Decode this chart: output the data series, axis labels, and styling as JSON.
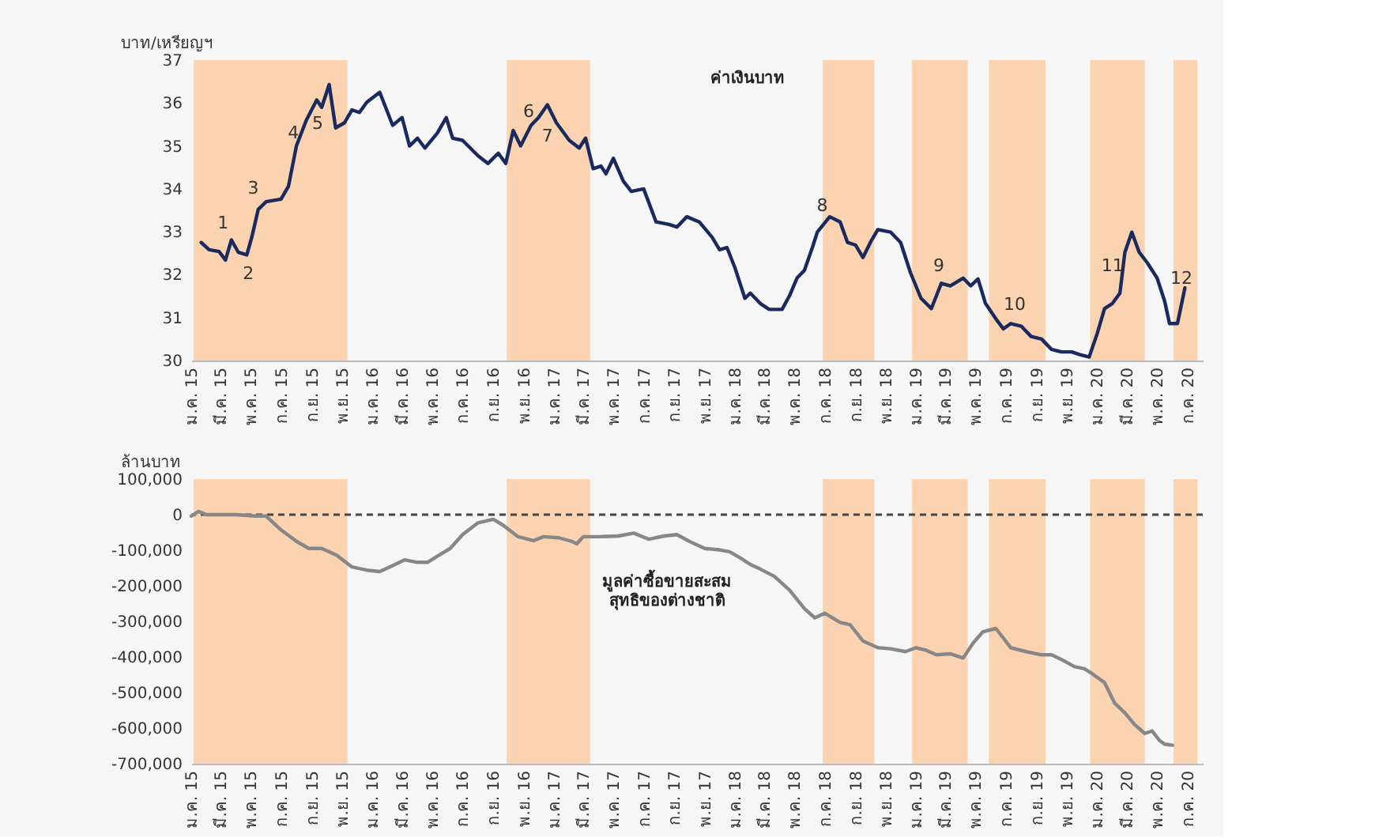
{
  "chart_data": [
    {
      "type": "line",
      "ylabel": "บาท/เหรียญฯ",
      "xlim": [
        "2015-01",
        "2020-08"
      ],
      "ylim": [
        30,
        37
      ],
      "yticks": [
        30,
        31,
        32,
        33,
        34,
        35,
        36,
        37
      ],
      "xticks": [
        {
          "value": "2015-01",
          "label": "ม.ค. 15"
        },
        {
          "value": "2015-03",
          "label": "มี.ค. 15"
        },
        {
          "value": "2015-05",
          "label": "พ.ค. 15"
        },
        {
          "value": "2015-07",
          "label": "ก.ค. 15"
        },
        {
          "value": "2015-09",
          "label": "ก.ย. 15"
        },
        {
          "value": "2015-11",
          "label": "พ.ย. 15"
        },
        {
          "value": "2016-01",
          "label": "ม.ค. 16"
        },
        {
          "value": "2016-03",
          "label": "มี.ค. 16"
        },
        {
          "value": "2016-05",
          "label": "พ.ค. 16"
        },
        {
          "value": "2016-07",
          "label": "ก.ค. 16"
        },
        {
          "value": "2016-09",
          "label": "ก.ย. 16"
        },
        {
          "value": "2016-11",
          "label": "พ.ย. 16"
        },
        {
          "value": "2017-01",
          "label": "ม.ค. 17"
        },
        {
          "value": "2017-03",
          "label": "มี.ค. 17"
        },
        {
          "value": "2017-05",
          "label": "พ.ค. 17"
        },
        {
          "value": "2017-07",
          "label": "ก.ค. 17"
        },
        {
          "value": "2017-09",
          "label": "ก.ย. 17"
        },
        {
          "value": "2017-11",
          "label": "พ.ย. 17"
        },
        {
          "value": "2018-01",
          "label": "ม.ค. 18"
        },
        {
          "value": "2018-03",
          "label": "มี.ค. 18"
        },
        {
          "value": "2018-05",
          "label": "พ.ค. 18"
        },
        {
          "value": "2018-07",
          "label": "ก.ค. 18"
        },
        {
          "value": "2018-09",
          "label": "ก.ย. 18"
        },
        {
          "value": "2018-11",
          "label": "พ.ย. 18"
        },
        {
          "value": "2019-01",
          "label": "ม.ค. 19"
        },
        {
          "value": "2019-03",
          "label": "มี.ค. 19"
        },
        {
          "value": "2019-05",
          "label": "พ.ค. 19"
        },
        {
          "value": "2019-07",
          "label": "ก.ค. 19"
        },
        {
          "value": "2019-09",
          "label": "ก.ย. 19"
        },
        {
          "value": "2019-11",
          "label": "พ.ย. 19"
        },
        {
          "value": "2020-01",
          "label": "ม.ค. 20"
        },
        {
          "value": "2020-03",
          "label": "มี.ค. 20"
        },
        {
          "value": "2020-05",
          "label": "พ.ค. 20"
        },
        {
          "value": "2020-07",
          "label": "ก.ค. 20"
        }
      ],
      "series": [
        {
          "name": "ค่าเงินบาท",
          "color": "#1b2a5e",
          "x": [
            "2015-01-21",
            "2015-02-06",
            "2015-02-26",
            "2015-03-11",
            "2015-03-23",
            "2015-04-06",
            "2015-04-23",
            "2015-05-03",
            "2015-05-16",
            "2015-06-01",
            "2015-07-01",
            "2015-07-16",
            "2015-08-01",
            "2015-08-21",
            "2015-09-11",
            "2015-09-21",
            "2015-10-06",
            "2015-10-19",
            "2015-11-06",
            "2015-11-21",
            "2015-12-06",
            "2015-12-21",
            "2016-01-16",
            "2016-02-11",
            "2016-03-01",
            "2016-03-16",
            "2016-04-01",
            "2016-04-16",
            "2016-05-11",
            "2016-05-29",
            "2016-06-11",
            "2016-07-01",
            "2016-08-01",
            "2016-08-21",
            "2016-09-11",
            "2016-09-26",
            "2016-10-11",
            "2016-10-26",
            "2016-11-16",
            "2016-12-01",
            "2016-12-19",
            "2017-01-06",
            "2017-02-01",
            "2017-02-21",
            "2017-03-06",
            "2017-03-21",
            "2017-04-06",
            "2017-04-16",
            "2017-05-01",
            "2017-05-21",
            "2017-06-06",
            "2017-07-01",
            "2017-07-26",
            "2017-08-21",
            "2017-09-06",
            "2017-09-26",
            "2017-10-21",
            "2017-11-16",
            "2017-12-01",
            "2017-12-16",
            "2018-01-01",
            "2018-01-21",
            "2018-02-01",
            "2018-02-21",
            "2018-03-11",
            "2018-04-06",
            "2018-04-21",
            "2018-05-06",
            "2018-05-21",
            "2018-06-06",
            "2018-06-16",
            "2018-07-11",
            "2018-08-01",
            "2018-08-16",
            "2018-09-01",
            "2018-09-16",
            "2018-10-01",
            "2018-10-16",
            "2018-11-11",
            "2018-12-01",
            "2018-12-21",
            "2019-01-11",
            "2019-02-01",
            "2019-02-21",
            "2019-03-11",
            "2019-04-06",
            "2019-04-21",
            "2019-05-06",
            "2019-05-21",
            "2019-06-11",
            "2019-06-26",
            "2019-07-11",
            "2019-08-01",
            "2019-08-21",
            "2019-09-11",
            "2019-10-01",
            "2019-10-21",
            "2019-11-11",
            "2019-11-26",
            "2019-12-16",
            "2020-01-01",
            "2020-01-16",
            "2020-02-01",
            "2020-02-16",
            "2020-02-26",
            "2020-03-11",
            "2020-03-26",
            "2020-04-11",
            "2020-05-01",
            "2020-05-16",
            "2020-05-26",
            "2020-06-11",
            "2020-06-26"
          ],
          "values": [
            32.75,
            32.58,
            32.54,
            32.34,
            32.81,
            32.52,
            32.46,
            32.87,
            33.52,
            33.7,
            33.76,
            34.06,
            35.0,
            35.6,
            36.07,
            35.9,
            36.43,
            35.42,
            35.54,
            35.84,
            35.78,
            36.02,
            36.25,
            35.48,
            35.66,
            35.0,
            35.18,
            34.95,
            35.3,
            35.66,
            35.18,
            35.13,
            34.77,
            34.59,
            34.83,
            34.59,
            35.36,
            35.0,
            35.48,
            35.66,
            35.96,
            35.54,
            35.13,
            34.95,
            35.18,
            34.47,
            34.53,
            34.35,
            34.71,
            34.18,
            33.94,
            34.0,
            33.23,
            33.17,
            33.11,
            33.35,
            33.23,
            32.87,
            32.58,
            32.63,
            32.16,
            31.45,
            31.57,
            31.33,
            31.19,
            31.19,
            31.51,
            31.92,
            32.1,
            32.63,
            32.99,
            33.35,
            33.23,
            32.75,
            32.69,
            32.4,
            32.75,
            33.05,
            32.99,
            32.75,
            32.04,
            31.45,
            31.21,
            31.8,
            31.74,
            31.92,
            31.74,
            31.9,
            31.33,
            30.97,
            30.74,
            30.86,
            30.8,
            30.56,
            30.5,
            30.26,
            30.2,
            30.2,
            30.14,
            30.08,
            30.62,
            31.21,
            31.33,
            31.57,
            32.52,
            32.99,
            32.52,
            32.28,
            31.92,
            31.39,
            30.86,
            30.86,
            31.69
          ]
        }
      ],
      "annotations": [
        {
          "text": "1",
          "x": "2015-03-06",
          "y": 32.6
        },
        {
          "text": "2",
          "x": "2015-04-26",
          "y": 32.6
        },
        {
          "text": "3",
          "x": "2015-05-06",
          "y": 33.4
        },
        {
          "text": "4",
          "x": "2015-07-26",
          "y": 34.7
        },
        {
          "text": "5",
          "x": "2015-09-13",
          "y": 36.1
        },
        {
          "text": "6",
          "x": "2016-11-11",
          "y": 35.2
        },
        {
          "text": "7",
          "x": "2016-12-19",
          "y": 35.8
        },
        {
          "text": "8",
          "x": "2018-06-26",
          "y": 33.0
        },
        {
          "text": "9",
          "x": "2019-02-16",
          "y": 31.6
        },
        {
          "text": "10",
          "x": "2019-07-19",
          "y": 30.7
        },
        {
          "text": "11",
          "x": "2020-02-01",
          "y": 31.6
        },
        {
          "text": "12",
          "x": "2020-06-19",
          "y": 31.3
        }
      ],
      "bands": [
        {
          "axis": "x",
          "from": "2015-01-06",
          "to": "2015-11-12",
          "color": "#fcd3b0"
        },
        {
          "axis": "x",
          "from": "2016-09-28",
          "to": "2017-03-15",
          "color": "#fcd3b0"
        },
        {
          "axis": "x",
          "from": "2018-06-27",
          "to": "2018-10-09",
          "color": "#fcd3b0"
        },
        {
          "axis": "x",
          "from": "2018-12-24",
          "to": "2019-04-15",
          "color": "#fcd3b0"
        },
        {
          "axis": "x",
          "from": "2019-05-28",
          "to": "2019-09-19",
          "color": "#fcd3b0"
        },
        {
          "axis": "x",
          "from": "2019-12-18",
          "to": "2020-04-06",
          "color": "#fcd3b0"
        },
        {
          "axis": "x",
          "from": "2020-06-03",
          "to": "2020-07-21",
          "color": "#fcd3b0"
        }
      ]
    },
    {
      "type": "line",
      "ylabel": "ล้านบาท",
      "xlim": [
        "2015-01",
        "2020-08"
      ],
      "ylim": [
        -700000,
        100000
      ],
      "yticks": [
        {
          "value": -700000,
          "label": "-700,000"
        },
        {
          "value": -600000,
          "label": "-600,000"
        },
        {
          "value": -500000,
          "label": "-500,000"
        },
        {
          "value": -400000,
          "label": "-400,000"
        },
        {
          "value": -300000,
          "label": "-300,000"
        },
        {
          "value": -200000,
          "label": "-200,000"
        },
        {
          "value": -100000,
          "label": "-100,000"
        },
        0,
        {
          "value": 100000,
          "label": "100,000"
        }
      ],
      "xticks": [
        {
          "value": "2015-01",
          "label": "ม.ค. 15"
        },
        {
          "value": "2015-03",
          "label": "มี.ค. 15"
        },
        {
          "value": "2015-05",
          "label": "พ.ค. 15"
        },
        {
          "value": "2015-07",
          "label": "ก.ค. 15"
        },
        {
          "value": "2015-09",
          "label": "ก.ย. 15"
        },
        {
          "value": "2015-11",
          "label": "พ.ย. 15"
        },
        {
          "value": "2016-01",
          "label": "ม.ค. 16"
        },
        {
          "value": "2016-03",
          "label": "มี.ค. 16"
        },
        {
          "value": "2016-05",
          "label": "พ.ค. 16"
        },
        {
          "value": "2016-07",
          "label": "ก.ค. 16"
        },
        {
          "value": "2016-09",
          "label": "ก.ย. 16"
        },
        {
          "value": "2016-11",
          "label": "พ.ย. 16"
        },
        {
          "value": "2017-01",
          "label": "ม.ค. 17"
        },
        {
          "value": "2017-03",
          "label": "มี.ค. 17"
        },
        {
          "value": "2017-05",
          "label": "พ.ค. 17"
        },
        {
          "value": "2017-07",
          "label": "ก.ค. 17"
        },
        {
          "value": "2017-09",
          "label": "ก.ย. 17"
        },
        {
          "value": "2017-11",
          "label": "พ.ย. 17"
        },
        {
          "value": "2018-01",
          "label": "ม.ค. 18"
        },
        {
          "value": "2018-03",
          "label": "มี.ค. 18"
        },
        {
          "value": "2018-05",
          "label": "พ.ค. 18"
        },
        {
          "value": "2018-07",
          "label": "ก.ค. 18"
        },
        {
          "value": "2018-09",
          "label": "ก.ย. 18"
        },
        {
          "value": "2018-11",
          "label": "พ.ย. 18"
        },
        {
          "value": "2019-01",
          "label": "ม.ค. 19"
        },
        {
          "value": "2019-03",
          "label": "มี.ค. 19"
        },
        {
          "value": "2019-05",
          "label": "พ.ค. 19"
        },
        {
          "value": "2019-07",
          "label": "ก.ค. 19"
        },
        {
          "value": "2019-09",
          "label": "ก.ย. 19"
        },
        {
          "value": "2019-11",
          "label": "พ.ย. 19"
        },
        {
          "value": "2020-01",
          "label": "ม.ค. 20"
        },
        {
          "value": "2020-03",
          "label": "มี.ค. 20"
        },
        {
          "value": "2020-05",
          "label": "พ.ค. 20"
        },
        {
          "value": "2020-07",
          "label": "ก.ค. 20"
        }
      ],
      "series": [
        {
          "name": "มูลค่าซื้อขายสะสม\nสุทธิของต่างชาติ",
          "color": "#878787",
          "x": [
            "2015-01-01",
            "2015-01-16",
            "2015-02-01",
            "2015-04-01",
            "2015-05-11",
            "2015-06-01",
            "2015-07-01",
            "2015-08-01",
            "2015-08-26",
            "2015-09-21",
            "2015-10-21",
            "2015-11-21",
            "2015-12-21",
            "2016-01-16",
            "2016-02-16",
            "2016-03-06",
            "2016-04-01",
            "2016-04-21",
            "2016-05-11",
            "2016-06-06",
            "2016-07-01",
            "2016-08-01",
            "2016-09-01",
            "2016-09-21",
            "2016-10-21",
            "2016-11-21",
            "2016-12-11",
            "2017-01-11",
            "2017-02-06",
            "2017-02-16",
            "2017-03-01",
            "2017-04-01",
            "2017-05-11",
            "2017-06-11",
            "2017-07-11",
            "2017-08-11",
            "2017-09-06",
            "2017-10-01",
            "2017-11-01",
            "2017-12-01",
            "2017-12-21",
            "2018-01-11",
            "2018-02-01",
            "2018-02-21",
            "2018-03-21",
            "2018-04-21",
            "2018-05-21",
            "2018-06-11",
            "2018-07-01",
            "2018-08-01",
            "2018-08-21",
            "2018-09-16",
            "2018-10-16",
            "2018-11-11",
            "2018-12-11",
            "2019-01-01",
            "2019-01-21",
            "2019-02-11",
            "2019-03-11",
            "2019-04-06",
            "2019-04-26",
            "2019-05-16",
            "2019-06-11",
            "2019-07-11",
            "2019-08-11",
            "2019-09-11",
            "2019-10-01",
            "2019-10-21",
            "2019-11-16",
            "2019-12-06",
            "2019-12-21",
            "2020-01-16",
            "2020-02-06",
            "2020-02-26",
            "2020-03-16",
            "2020-04-06",
            "2020-04-21",
            "2020-05-06",
            "2020-05-16",
            "2020-06-01"
          ],
          "values": [
            -4000,
            9000,
            0,
            0,
            -4000,
            -4000,
            -43000,
            -75000,
            -95000,
            -95000,
            -114000,
            -147000,
            -156000,
            -160000,
            -140000,
            -127000,
            -134000,
            -134000,
            -117000,
            -95000,
            -56000,
            -23000,
            -13000,
            -30000,
            -62000,
            -73000,
            -62000,
            -65000,
            -75000,
            -82000,
            -62000,
            -62000,
            -60000,
            -52000,
            -69000,
            -60000,
            -56000,
            -75000,
            -95000,
            -99000,
            -104000,
            -121000,
            -140000,
            -153000,
            -173000,
            -212000,
            -264000,
            -290000,
            -277000,
            -303000,
            -309000,
            -355000,
            -374000,
            -377000,
            -385000,
            -374000,
            -381000,
            -394000,
            -391000,
            -403000,
            -361000,
            -329000,
            -320000,
            -374000,
            -385000,
            -394000,
            -394000,
            -407000,
            -427000,
            -433000,
            -446000,
            -472000,
            -531000,
            -557000,
            -589000,
            -615000,
            -608000,
            -635000,
            -645000,
            -648000
          ]
        }
      ],
      "ref_lines": [
        {
          "axis": "y",
          "value": 0,
          "color": "#444444",
          "line_style": "dashed"
        }
      ],
      "bands": [
        {
          "axis": "x",
          "from": "2015-01-06",
          "to": "2015-11-12",
          "color": "#fcd3b0"
        },
        {
          "axis": "x",
          "from": "2016-09-28",
          "to": "2017-03-15",
          "color": "#fcd3b0"
        },
        {
          "axis": "x",
          "from": "2018-06-27",
          "to": "2018-10-09",
          "color": "#fcd3b0"
        },
        {
          "axis": "x",
          "from": "2018-12-24",
          "to": "2019-04-15",
          "color": "#fcd3b0"
        },
        {
          "axis": "x",
          "from": "2019-05-28",
          "to": "2019-09-19",
          "color": "#fcd3b0"
        },
        {
          "axis": "x",
          "from": "2019-12-18",
          "to": "2020-04-06",
          "color": "#fcd3b0"
        },
        {
          "axis": "x",
          "from": "2020-06-03",
          "to": "2020-07-21",
          "color": "#fcd3b0"
        }
      ]
    }
  ]
}
